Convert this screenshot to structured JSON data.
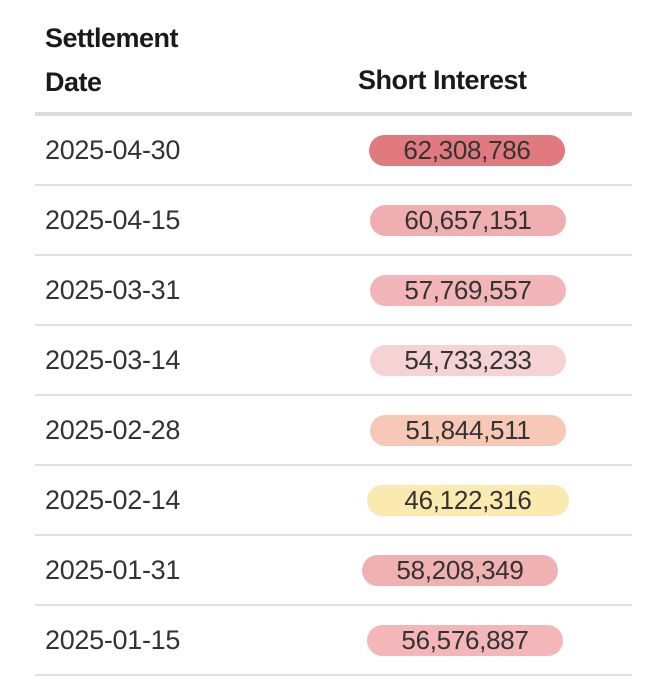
{
  "headers": {
    "date_line1": "Settlement",
    "date_line2": "Date",
    "short_interest": "Short Interest"
  },
  "rows": [
    {
      "date": "2025-04-30",
      "value": "62,308,786",
      "color": "#e07a7e"
    },
    {
      "date": "2025-04-15",
      "value": "60,657,151",
      "color": "#f1aeb0"
    },
    {
      "date": "2025-03-31",
      "value": "57,769,557",
      "color": "#f3b6b8"
    },
    {
      "date": "2025-03-14",
      "value": "54,733,233",
      "color": "#f5d2d3"
    },
    {
      "date": "2025-02-28",
      "value": "51,844,511",
      "color": "#f8c8b6"
    },
    {
      "date": "2025-02-14",
      "value": "46,122,316",
      "color": "#faeab0"
    },
    {
      "date": "2025-01-31",
      "value": "58,208,349",
      "color": "#f0b1b3"
    },
    {
      "date": "2025-01-15",
      "value": "56,576,887",
      "color": "#f3b7b9"
    }
  ]
}
